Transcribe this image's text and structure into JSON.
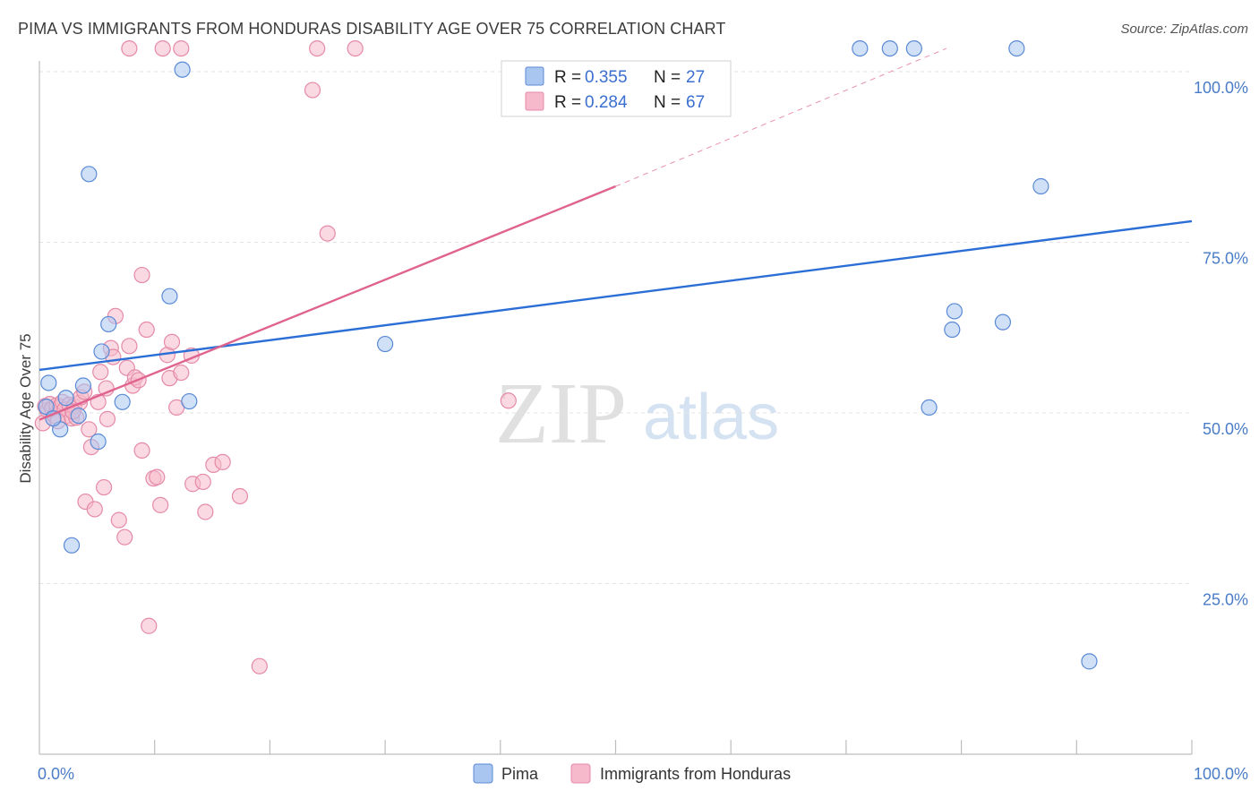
{
  "header": {
    "title": "PIMA VS IMMIGRANTS FROM HONDURAS DISABILITY AGE OVER 75 CORRELATION CHART",
    "source": "Source: ZipAtlas.com"
  },
  "watermark": {
    "zip": "ZIP",
    "atlas": "atlas"
  },
  "colors": {
    "pima_fill": "#a9c6f0",
    "pima_stroke": "#5a8ad6",
    "pima_line": "#2b6fd6",
    "honduras_fill": "#f6b9cb",
    "honduras_stroke": "#e58aa8",
    "honduras_line": "#e0638f",
    "grid": "#e3e3e3",
    "tick_label": "#4a7cc7"
  },
  "legend": {
    "rows": [
      {
        "r_label": "R =",
        "r_value": "0.355",
        "n_label": "N =",
        "n_value": "27"
      },
      {
        "r_label": "R =",
        "r_value": "0.284",
        "n_label": "N =",
        "n_value": "67"
      }
    ]
  },
  "chart_data": {
    "type": "scatter",
    "title": "PIMA VS IMMIGRANTS FROM HONDURAS DISABILITY AGE OVER 75 CORRELATION CHART",
    "xlabel": "",
    "ylabel": "Disability Age Over 75",
    "xlim": [
      0,
      100
    ],
    "ylim": [
      0,
      102
    ],
    "x_tick_labels": [
      "0.0%",
      "100.0%"
    ],
    "y_ticks": [
      25,
      50,
      75,
      100
    ],
    "y_tick_labels": [
      "25.0%",
      "50.0%",
      "75.0%",
      "100.0%"
    ],
    "grid": true,
    "legend_position": "top-center",
    "series": [
      {
        "name": "Pima",
        "R": 0.355,
        "N": 27,
        "trend": {
          "x": [
            0,
            100
          ],
          "y": [
            56.3,
            78.1
          ],
          "dashed_extension": false
        },
        "points": [
          {
            "x": 0.8,
            "y": 54.4
          },
          {
            "x": 1.8,
            "y": 47.6
          },
          {
            "x": 2.3,
            "y": 52.2
          },
          {
            "x": 2.8,
            "y": 30.6
          },
          {
            "x": 3.4,
            "y": 49.6
          },
          {
            "x": 3.8,
            "y": 54.0
          },
          {
            "x": 4.3,
            "y": 85.0
          },
          {
            "x": 5.1,
            "y": 45.8
          },
          {
            "x": 5.4,
            "y": 59.0
          },
          {
            "x": 6.0,
            "y": 63.0
          },
          {
            "x": 7.2,
            "y": 51.6
          },
          {
            "x": 11.3,
            "y": 67.1
          },
          {
            "x": 12.4,
            "y": 100.3
          },
          {
            "x": 13.0,
            "y": 51.7
          },
          {
            "x": 30.0,
            "y": 60.1
          },
          {
            "x": 71.2,
            "y": 103.4
          },
          {
            "x": 73.8,
            "y": 103.4
          },
          {
            "x": 75.9,
            "y": 103.4
          },
          {
            "x": 77.2,
            "y": 50.8
          },
          {
            "x": 79.2,
            "y": 62.2
          },
          {
            "x": 79.4,
            "y": 64.9
          },
          {
            "x": 83.6,
            "y": 63.3
          },
          {
            "x": 84.8,
            "y": 103.4
          },
          {
            "x": 86.9,
            "y": 83.2
          },
          {
            "x": 91.1,
            "y": 13.6
          },
          {
            "x": 0.6,
            "y": 50.9
          },
          {
            "x": 1.2,
            "y": 49.2
          }
        ]
      },
      {
        "name": "Immigrants from Honduras",
        "R": 0.284,
        "N": 67,
        "trend": {
          "x": [
            0,
            50
          ],
          "y": [
            49.0,
            83.2
          ],
          "dashed_to": {
            "x": 78.7,
            "y": 103.4
          }
        },
        "points": [
          {
            "x": 0.3,
            "y": 48.5
          },
          {
            "x": 0.5,
            "y": 51.0
          },
          {
            "x": 0.7,
            "y": 50.4
          },
          {
            "x": 0.9,
            "y": 51.3
          },
          {
            "x": 1.1,
            "y": 50.6
          },
          {
            "x": 1.3,
            "y": 49.6
          },
          {
            "x": 1.5,
            "y": 51.1
          },
          {
            "x": 1.8,
            "y": 50.9
          },
          {
            "x": 2.0,
            "y": 51.6
          },
          {
            "x": 2.2,
            "y": 50.5
          },
          {
            "x": 2.4,
            "y": 49.6
          },
          {
            "x": 2.6,
            "y": 51.2
          },
          {
            "x": 2.8,
            "y": 49.2
          },
          {
            "x": 3.0,
            "y": 51.0
          },
          {
            "x": 3.2,
            "y": 49.3
          },
          {
            "x": 3.5,
            "y": 51.5
          },
          {
            "x": 3.6,
            "y": 52.3
          },
          {
            "x": 3.9,
            "y": 53.1
          },
          {
            "x": 4.0,
            "y": 37.0
          },
          {
            "x": 4.3,
            "y": 47.6
          },
          {
            "x": 4.5,
            "y": 45.0
          },
          {
            "x": 4.8,
            "y": 35.9
          },
          {
            "x": 5.1,
            "y": 51.6
          },
          {
            "x": 5.3,
            "y": 56.0
          },
          {
            "x": 5.6,
            "y": 39.1
          },
          {
            "x": 5.8,
            "y": 53.6
          },
          {
            "x": 5.9,
            "y": 49.1
          },
          {
            "x": 6.2,
            "y": 59.5
          },
          {
            "x": 6.4,
            "y": 58.2
          },
          {
            "x": 6.6,
            "y": 64.2
          },
          {
            "x": 6.9,
            "y": 34.3
          },
          {
            "x": 7.4,
            "y": 31.8
          },
          {
            "x": 7.6,
            "y": 56.6
          },
          {
            "x": 7.8,
            "y": 103.4
          },
          {
            "x": 7.8,
            "y": 59.8
          },
          {
            "x": 8.1,
            "y": 54.0
          },
          {
            "x": 8.3,
            "y": 55.2
          },
          {
            "x": 8.6,
            "y": 54.8
          },
          {
            "x": 8.9,
            "y": 44.5
          },
          {
            "x": 8.9,
            "y": 70.2
          },
          {
            "x": 9.3,
            "y": 62.2
          },
          {
            "x": 9.5,
            "y": 18.8
          },
          {
            "x": 9.9,
            "y": 40.4
          },
          {
            "x": 10.2,
            "y": 40.6
          },
          {
            "x": 10.5,
            "y": 36.5
          },
          {
            "x": 10.7,
            "y": 103.4
          },
          {
            "x": 11.1,
            "y": 58.5
          },
          {
            "x": 11.3,
            "y": 55.1
          },
          {
            "x": 11.5,
            "y": 60.4
          },
          {
            "x": 11.9,
            "y": 50.8
          },
          {
            "x": 12.3,
            "y": 103.4
          },
          {
            "x": 12.3,
            "y": 55.9
          },
          {
            "x": 13.2,
            "y": 58.4
          },
          {
            "x": 13.3,
            "y": 39.6
          },
          {
            "x": 14.2,
            "y": 39.9
          },
          {
            "x": 14.4,
            "y": 35.5
          },
          {
            "x": 15.1,
            "y": 42.4
          },
          {
            "x": 15.9,
            "y": 42.8
          },
          {
            "x": 17.4,
            "y": 37.8
          },
          {
            "x": 19.1,
            "y": 12.9
          },
          {
            "x": 23.7,
            "y": 97.3
          },
          {
            "x": 24.1,
            "y": 103.4
          },
          {
            "x": 25.0,
            "y": 76.3
          },
          {
            "x": 27.4,
            "y": 103.4
          },
          {
            "x": 40.7,
            "y": 51.8
          },
          {
            "x": 1.6,
            "y": 48.8
          },
          {
            "x": 2.9,
            "y": 50.2
          }
        ]
      }
    ]
  },
  "bottom_legend": [
    {
      "label": "Pima"
    },
    {
      "label": "Immigrants from Honduras"
    }
  ]
}
